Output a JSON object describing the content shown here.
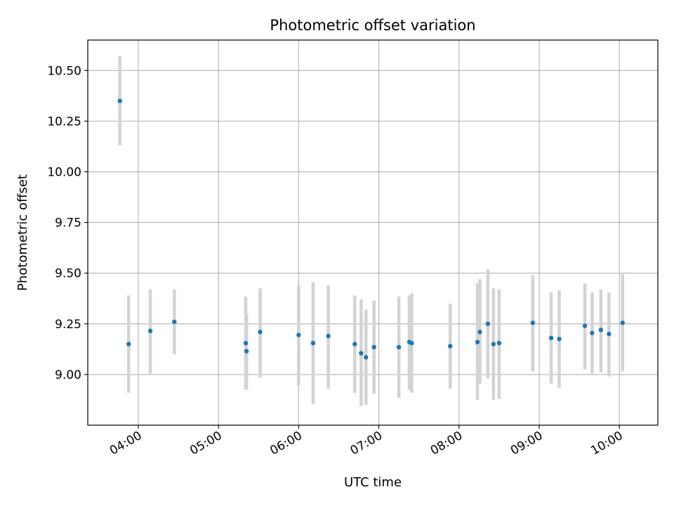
{
  "chart_data": {
    "type": "scatter",
    "title": "Photometric offset variation",
    "xlabel": "UTC time",
    "ylabel": "Photometric offset",
    "x_unit": "UTC hours",
    "xlim": [
      3.37,
      10.48
    ],
    "ylim": [
      8.75,
      10.65
    ],
    "x_ticks": [
      {
        "value": 4,
        "label": "04:00"
      },
      {
        "value": 5,
        "label": "05:00"
      },
      {
        "value": 6,
        "label": "06:00"
      },
      {
        "value": 7,
        "label": "07:00"
      },
      {
        "value": 8,
        "label": "08:00"
      },
      {
        "value": 9,
        "label": "09:00"
      },
      {
        "value": 10,
        "label": "10:00"
      }
    ],
    "y_ticks": [
      {
        "value": 9.0,
        "label": "9.00"
      },
      {
        "value": 9.25,
        "label": "9.25"
      },
      {
        "value": 9.5,
        "label": "9.50"
      },
      {
        "value": 9.75,
        "label": "9.75"
      },
      {
        "value": 10.0,
        "label": "10.00"
      },
      {
        "value": 10.25,
        "label": "10.25"
      },
      {
        "value": 10.5,
        "label": "10.50"
      }
    ],
    "grid": true,
    "marker_color": "#1f77b4",
    "errorbar_color": "#d3d3d3",
    "points": [
      {
        "x": 3.77,
        "y": 10.35,
        "ylo": 10.13,
        "yhi": 10.57
      },
      {
        "x": 3.88,
        "y": 9.15,
        "ylo": 8.91,
        "yhi": 9.39
      },
      {
        "x": 4.15,
        "y": 9.215,
        "ylo": 9.005,
        "yhi": 9.42
      },
      {
        "x": 4.45,
        "y": 9.26,
        "ylo": 9.1,
        "yhi": 9.42
      },
      {
        "x": 5.34,
        "y": 9.155,
        "ylo": 8.925,
        "yhi": 9.385
      },
      {
        "x": 5.35,
        "y": 9.115,
        "ylo": 8.925,
        "yhi": 9.3
      },
      {
        "x": 5.52,
        "y": 9.21,
        "ylo": 8.985,
        "yhi": 9.425
      },
      {
        "x": 6.0,
        "y": 9.195,
        "ylo": 8.945,
        "yhi": 9.44
      },
      {
        "x": 6.18,
        "y": 9.155,
        "ylo": 8.855,
        "yhi": 9.455
      },
      {
        "x": 6.37,
        "y": 9.19,
        "ylo": 8.93,
        "yhi": 9.44
      },
      {
        "x": 6.7,
        "y": 9.15,
        "ylo": 8.91,
        "yhi": 9.39
      },
      {
        "x": 6.78,
        "y": 9.105,
        "ylo": 8.845,
        "yhi": 9.37
      },
      {
        "x": 6.84,
        "y": 9.085,
        "ylo": 8.85,
        "yhi": 9.32
      },
      {
        "x": 6.94,
        "y": 9.135,
        "ylo": 8.905,
        "yhi": 9.365
      },
      {
        "x": 7.25,
        "y": 9.135,
        "ylo": 8.885,
        "yhi": 9.385
      },
      {
        "x": 7.38,
        "y": 9.16,
        "ylo": 8.925,
        "yhi": 9.39
      },
      {
        "x": 7.41,
        "y": 9.155,
        "ylo": 8.91,
        "yhi": 9.4
      },
      {
        "x": 7.89,
        "y": 9.14,
        "ylo": 8.93,
        "yhi": 9.35
      },
      {
        "x": 8.23,
        "y": 9.16,
        "ylo": 8.875,
        "yhi": 9.45
      },
      {
        "x": 8.26,
        "y": 9.21,
        "ylo": 8.955,
        "yhi": 9.47
      },
      {
        "x": 8.36,
        "y": 9.25,
        "ylo": 8.98,
        "yhi": 9.52
      },
      {
        "x": 8.43,
        "y": 9.15,
        "ylo": 8.875,
        "yhi": 9.425
      },
      {
        "x": 8.5,
        "y": 9.155,
        "ylo": 8.88,
        "yhi": 9.42
      },
      {
        "x": 8.92,
        "y": 9.255,
        "ylo": 9.015,
        "yhi": 9.49
      },
      {
        "x": 9.15,
        "y": 9.18,
        "ylo": 8.955,
        "yhi": 9.405
      },
      {
        "x": 9.25,
        "y": 9.175,
        "ylo": 8.935,
        "yhi": 9.415
      },
      {
        "x": 9.57,
        "y": 9.24,
        "ylo": 9.025,
        "yhi": 9.45
      },
      {
        "x": 9.66,
        "y": 9.205,
        "ylo": 9.005,
        "yhi": 9.405
      },
      {
        "x": 9.77,
        "y": 9.22,
        "ylo": 9.01,
        "yhi": 9.42
      },
      {
        "x": 9.87,
        "y": 9.2,
        "ylo": 8.99,
        "yhi": 9.405
      },
      {
        "x": 10.04,
        "y": 9.255,
        "ylo": 9.015,
        "yhi": 9.495
      }
    ]
  }
}
